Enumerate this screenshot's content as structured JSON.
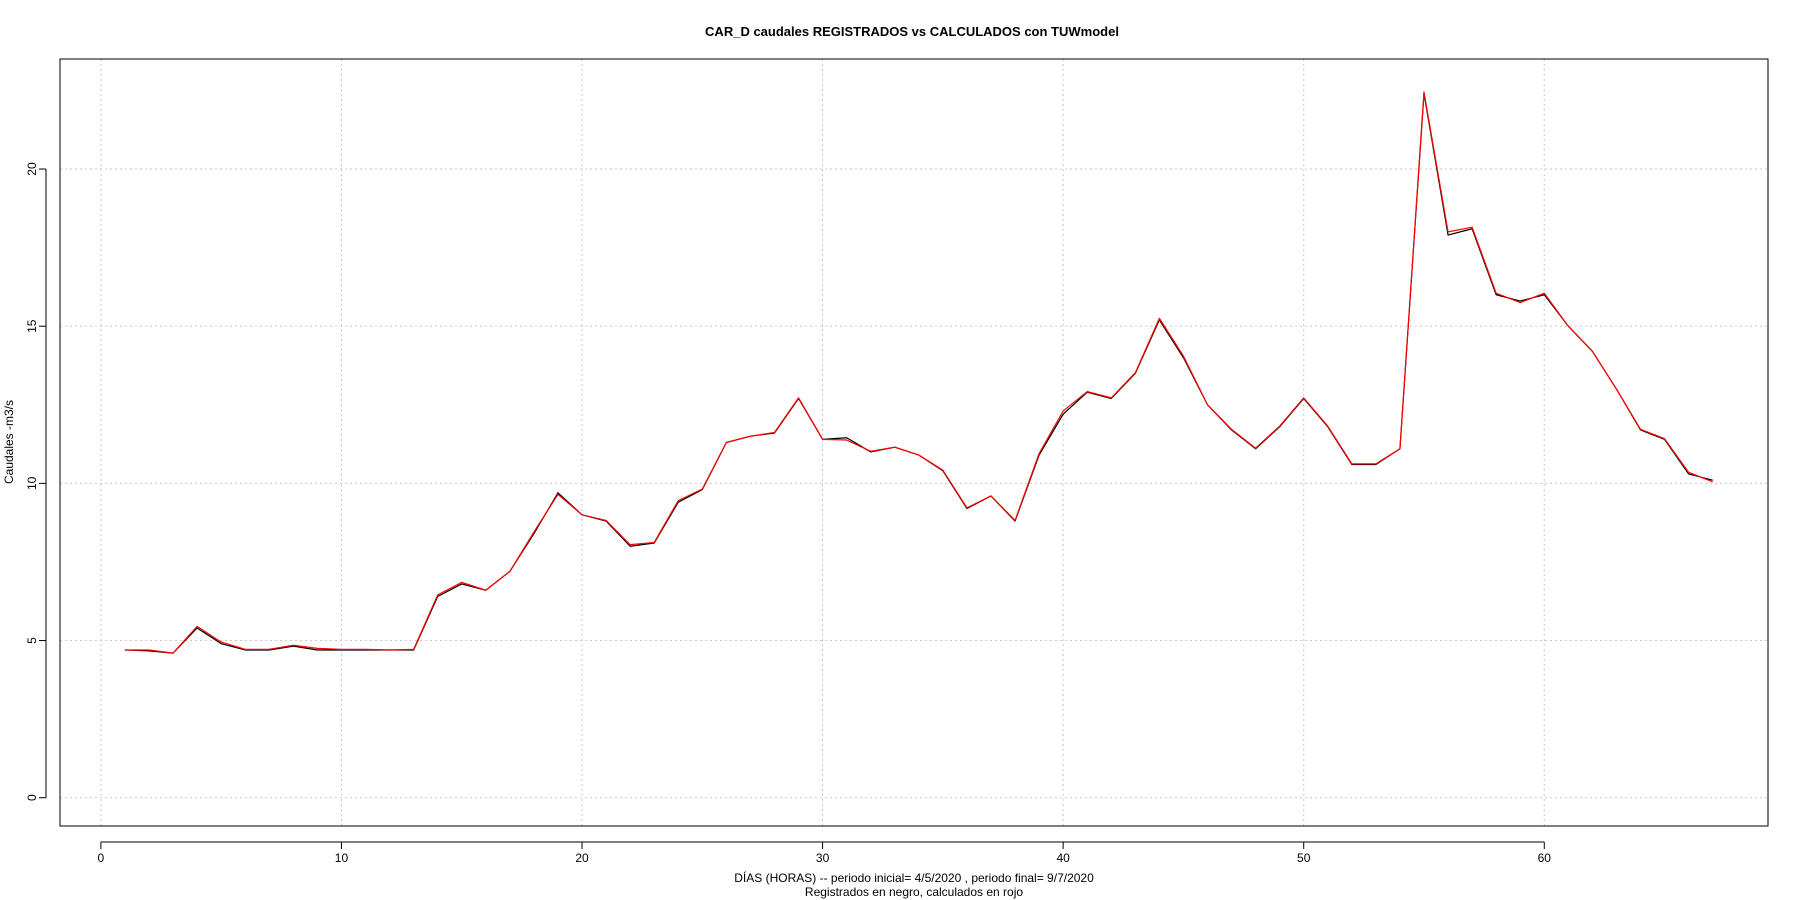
{
  "chart_data": {
    "type": "line",
    "title": "CAR_D caudales REGISTRADOS vs CALCULADOS con TUWmodel",
    "xlabel": "DÍAS (HORAS) --  periodo inicial= 4/5/2020 ,  periodo final= 9/7/2020",
    "xlabel2": "Registrados en negro, calculados en rojo",
    "ylabel": "Caudales -m3/s",
    "xlim": [
      -1.7,
      69.3
    ],
    "ylim": [
      -0.9,
      23.5
    ],
    "xticks": [
      0,
      10,
      20,
      30,
      40,
      50,
      60
    ],
    "yticks": [
      0,
      5,
      10,
      15,
      20
    ],
    "grid": true,
    "x": [
      1,
      2,
      3,
      4,
      5,
      6,
      7,
      8,
      9,
      10,
      11,
      12,
      13,
      14,
      15,
      16,
      17,
      18,
      19,
      20,
      21,
      22,
      23,
      24,
      25,
      26,
      27,
      28,
      29,
      30,
      31,
      32,
      33,
      34,
      35,
      36,
      37,
      38,
      39,
      40,
      41,
      42,
      43,
      44,
      45,
      46,
      47,
      48,
      49,
      50,
      51,
      52,
      53,
      54,
      55,
      56,
      57,
      58,
      59,
      60,
      61,
      62,
      63,
      64,
      65,
      66,
      67
    ],
    "series": [
      {
        "color": "#000000",
        "values": [
          4.7,
          4.67,
          4.6,
          5.4,
          4.9,
          4.7,
          4.7,
          4.82,
          4.7,
          4.7,
          4.7,
          4.7,
          4.7,
          6.4,
          6.8,
          6.6,
          7.2,
          8.4,
          9.7,
          9.0,
          8.8,
          8.0,
          8.1,
          9.4,
          9.8,
          11.3,
          11.5,
          11.6,
          12.7,
          11.4,
          11.45,
          11.0,
          11.15,
          10.9,
          10.4,
          9.2,
          9.6,
          8.8,
          10.9,
          12.2,
          12.9,
          12.7,
          13.5,
          15.2,
          14.0,
          12.5,
          11.7,
          11.1,
          11.8,
          12.7,
          11.8,
          10.6,
          10.6,
          11.1,
          22.4,
          17.9,
          18.1,
          16.0,
          15.8,
          16.0,
          15.0,
          14.2,
          13.0,
          11.7,
          11.4,
          10.3,
          10.1
        ]
      },
      {
        "color": "#ff0000",
        "values": [
          4.7,
          4.7,
          4.6,
          5.45,
          4.95,
          4.72,
          4.72,
          4.85,
          4.75,
          4.72,
          4.72,
          4.7,
          4.72,
          6.45,
          6.85,
          6.6,
          7.2,
          8.45,
          9.65,
          9.0,
          8.82,
          8.05,
          8.12,
          9.45,
          9.82,
          11.3,
          11.5,
          11.62,
          12.72,
          11.4,
          11.38,
          11.02,
          11.15,
          10.9,
          10.42,
          9.22,
          9.6,
          8.82,
          10.95,
          12.3,
          12.92,
          12.72,
          13.52,
          15.25,
          14.05,
          12.5,
          11.72,
          11.12,
          11.82,
          12.72,
          11.82,
          10.62,
          10.62,
          11.1,
          22.45,
          18.0,
          18.15,
          16.05,
          15.75,
          16.05,
          15.0,
          14.2,
          13.0,
          11.72,
          11.42,
          10.35,
          10.05
        ]
      }
    ]
  }
}
